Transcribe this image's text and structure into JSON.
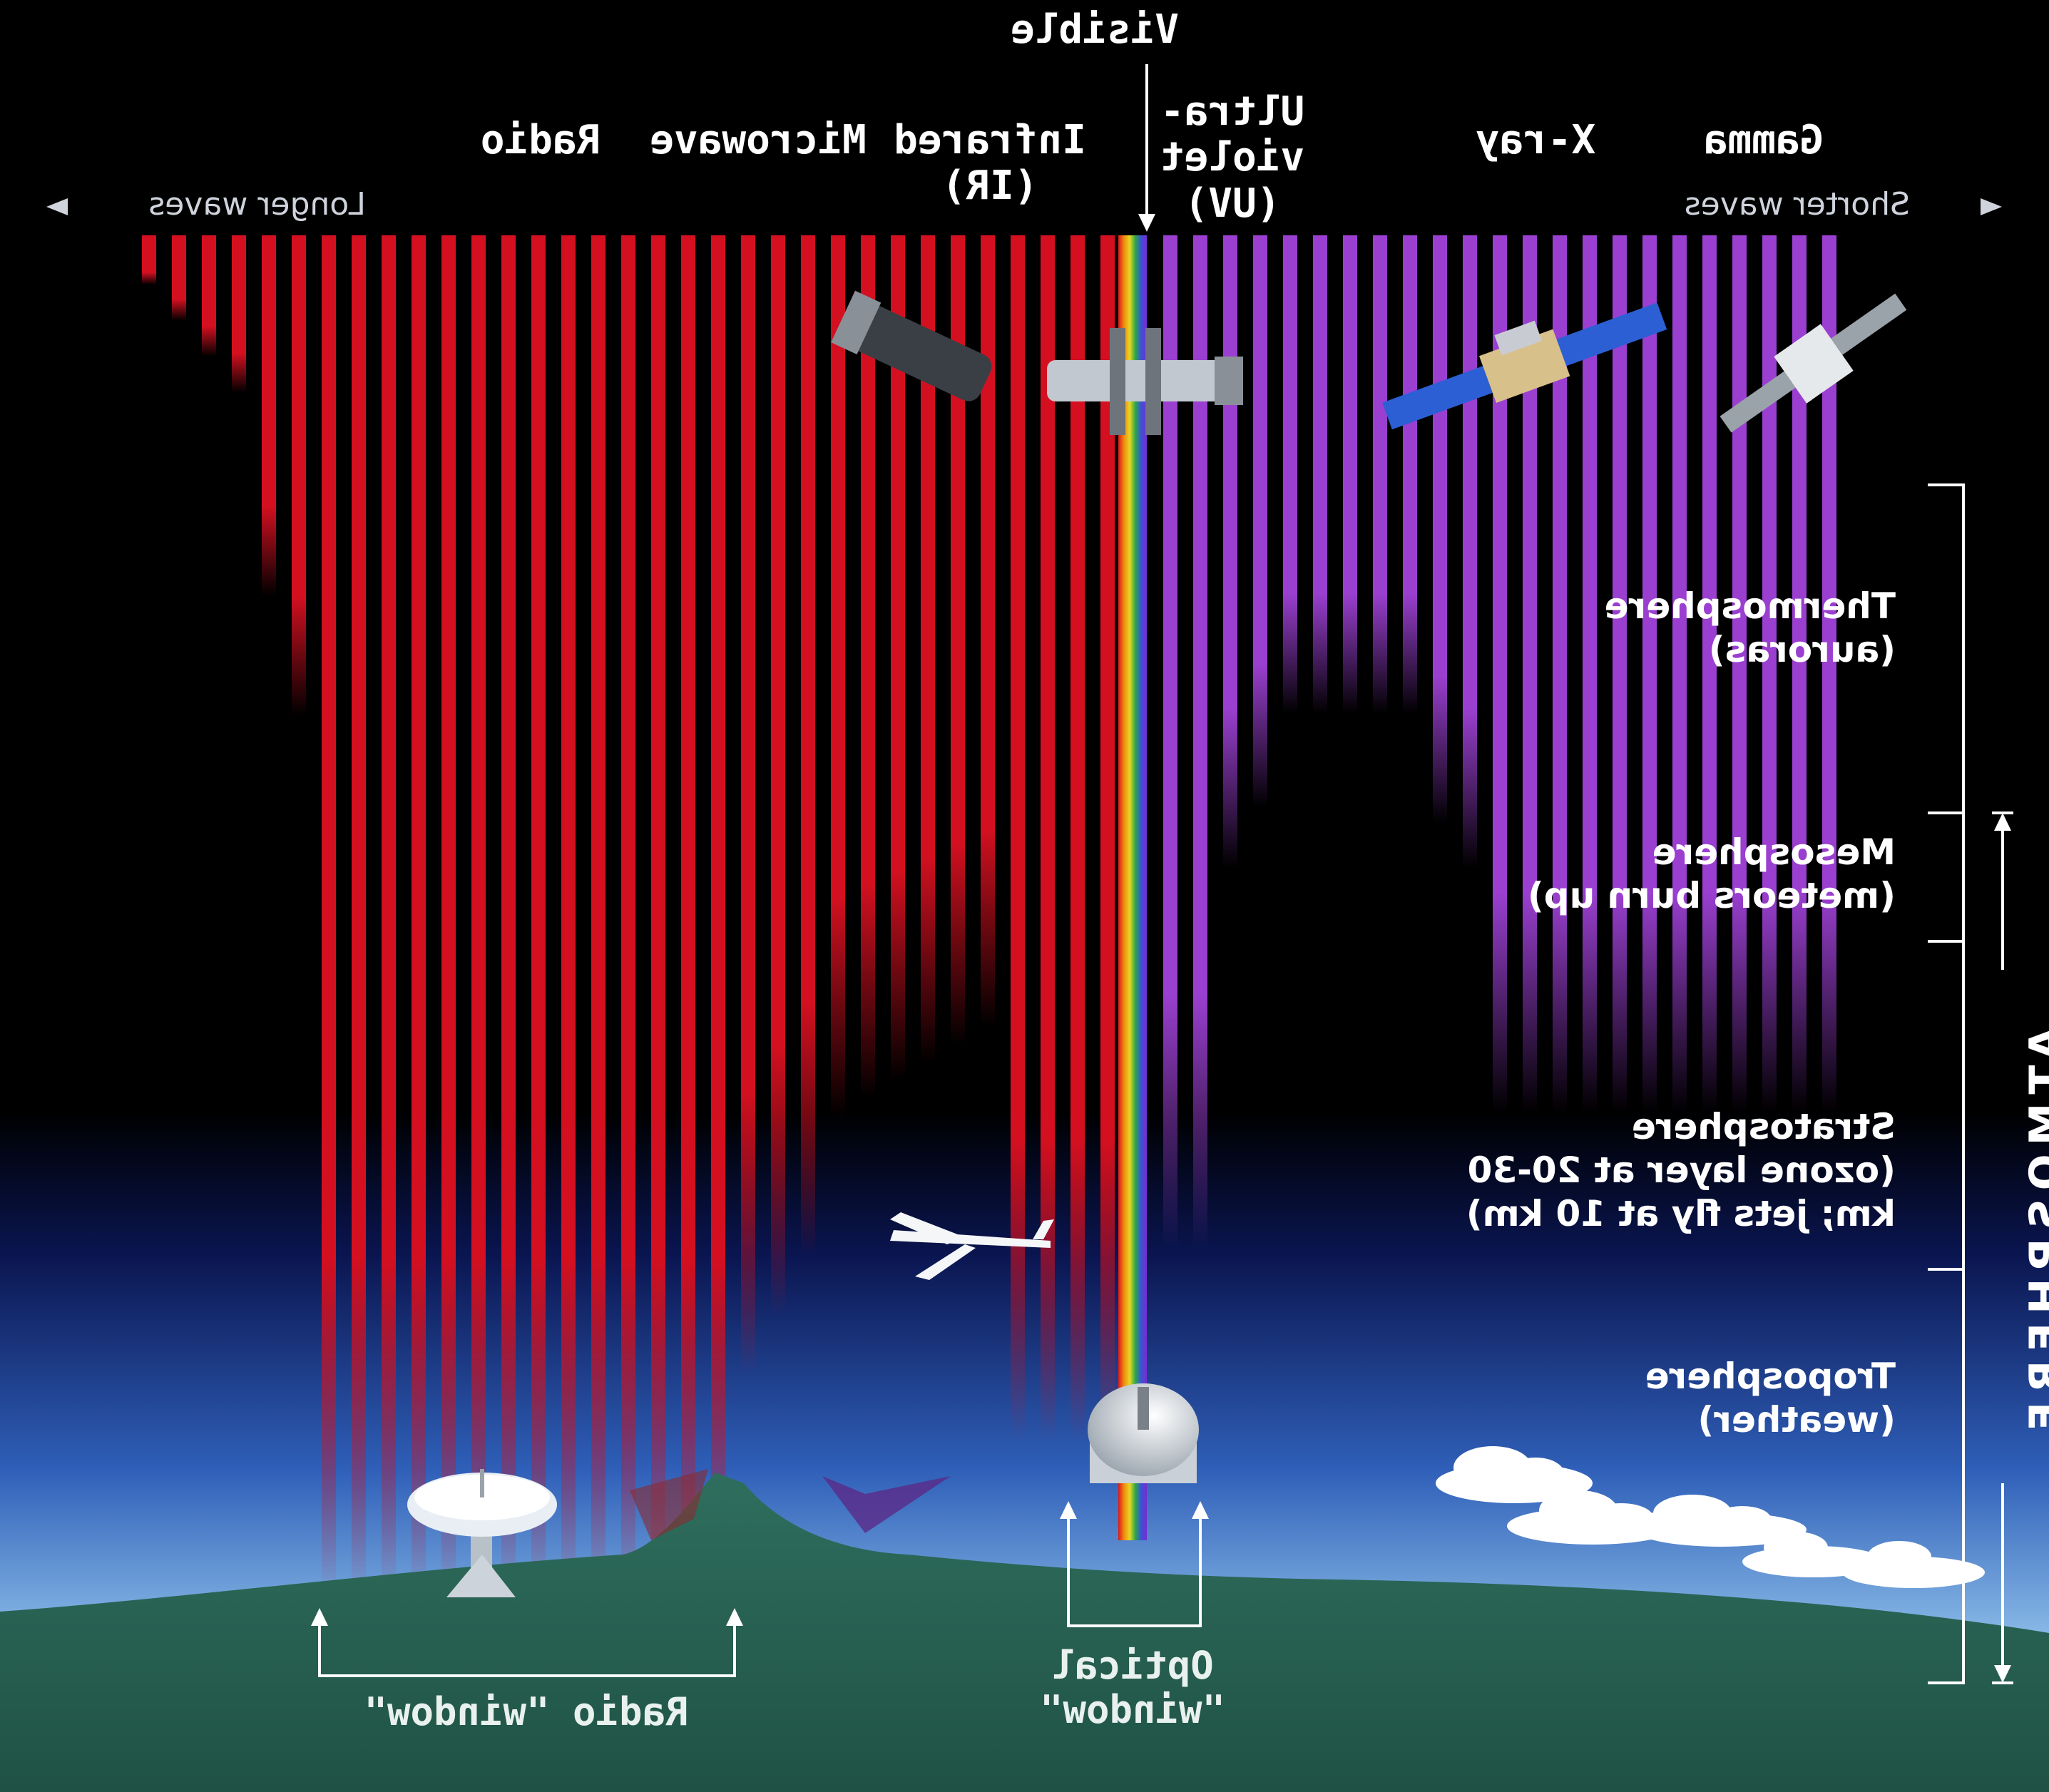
{
  "diagram": {
    "bands": {
      "visible": "Visible",
      "radio": "Radio",
      "microwave": "Microwave",
      "infrared": "Infrared\n(IR)",
      "ultraviolet": "Ultra-\nviolet\n(UV)",
      "xray": "X-ray",
      "gamma": "Gamma"
    },
    "directions": {
      "longer": "Longer waves",
      "shorter": "Shorter waves"
    },
    "layers": {
      "thermosphere": "Thermosphere\n(auroras)",
      "mesosphere": "Mesosphere\n(meteors burn up)",
      "stratosphere": "Stratosphere\n(ozone layer at 20-30\nkm; jets fly at 10 km)",
      "troposphere": "Troposphere\n(weather)"
    },
    "atmosphere_label": "ATMOSPHERE",
    "windows": {
      "radio": "Radio \"window\"",
      "optical": "Optical\n\"window\""
    },
    "colors": {
      "radio_wave": "#d41020",
      "uv_wave": "#9a3fd0",
      "ground": "#2e6b5c",
      "sky_low": "#5fa2dd",
      "sky_high": "#0a1550"
    },
    "icons": [
      "radio-dish-icon",
      "observatory-dome-icon",
      "airplane-icon",
      "satellite-icon",
      "space-telescope-icon",
      "cloud-icon"
    ]
  }
}
